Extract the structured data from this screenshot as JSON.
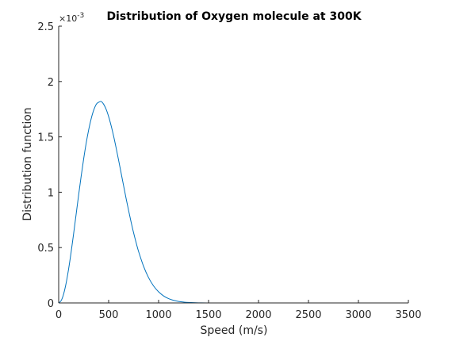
{
  "chart_data": {
    "type": "line",
    "title": "Distribution of Oxygen molecule at 300K",
    "xlabel": "Speed (m/s)",
    "ylabel": "Distribution function",
    "xlim": [
      0,
      3500
    ],
    "ylim": [
      0,
      0.0025
    ],
    "xticks": [
      0,
      500,
      1000,
      1500,
      2000,
      2500,
      3000,
      3500
    ],
    "xtick_labels": [
      "0",
      "500",
      "1000",
      "1500",
      "2000",
      "2500",
      "3000",
      "3500"
    ],
    "yticks": [
      0,
      0.0005,
      0.001,
      0.0015,
      0.002,
      0.0025
    ],
    "ytick_labels": [
      "0",
      "0.5",
      "1",
      "1.5",
      "2",
      "2.5"
    ],
    "y_multiplier": "×10",
    "y_multiplier_exp": "-3",
    "grid": false,
    "line_color": "#0072bd",
    "series": [
      {
        "x": [
          0,
          25,
          50,
          75,
          100,
          125,
          150,
          175,
          200,
          225,
          250,
          275,
          300,
          325,
          350,
          375,
          395,
          425,
          450,
          475,
          500,
          525,
          550,
          575,
          600,
          625,
          650,
          675,
          700,
          725,
          750,
          775,
          800,
          850,
          900,
          950,
          1000,
          1050,
          1100,
          1150,
          1200,
          1250,
          1300,
          1400,
          1500,
          1750,
          2000,
          2250,
          2500,
          2750,
          3000
        ],
        "y": [
          0,
          2.1e-05,
          8.26e-05,
          0.000181,
          0.00031,
          0.000462,
          0.000629,
          0.000803,
          0.000977,
          0.001145,
          0.001301,
          0.001442,
          0.001563,
          0.001663,
          0.00174,
          0.001793,
          0.00181,
          0.00182,
          0.001795,
          0.001749,
          0.001683,
          0.001601,
          0.001506,
          0.0014,
          0.001288,
          0.001173,
          0.001057,
          0.000943,
          0.000834,
          0.00073,
          0.000633,
          0.000545,
          0.000464,
          0.00033,
          0.000228,
          0.000153,
          0.0001,
          6.34e-05,
          3.91e-05,
          2.34e-05,
          1.37e-05,
          7.8e-06,
          4.3e-06,
          1.2e-06,
          3e-07,
          0,
          0,
          0,
          0,
          0,
          0
        ]
      }
    ]
  }
}
